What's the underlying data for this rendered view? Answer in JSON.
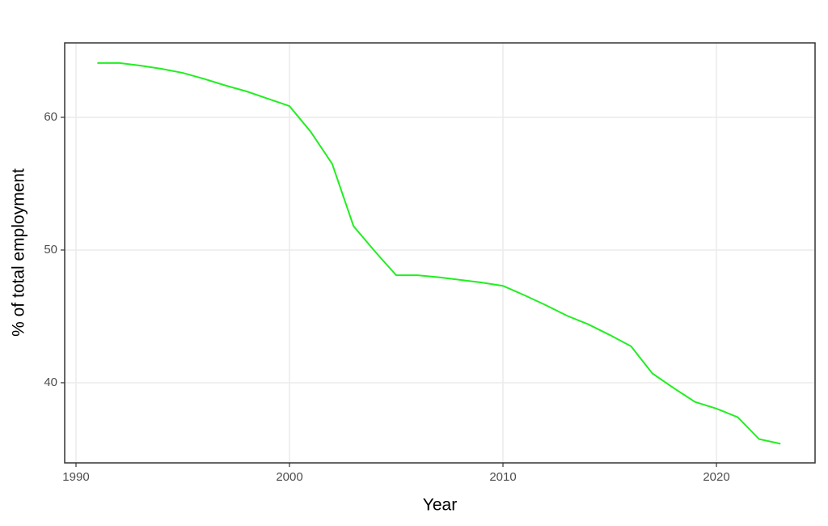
{
  "chart_data": {
    "type": "line",
    "x_label": "Year",
    "y_label": "% of total employment",
    "x": [
      1991,
      1992,
      1993,
      1994,
      1995,
      1996,
      1997,
      1998,
      1999,
      2000,
      2001,
      2002,
      2003,
      2004,
      2005,
      2006,
      2007,
      2008,
      2009,
      2010,
      2011,
      2012,
      2013,
      2014,
      2015,
      2016,
      2017,
      2018,
      2019,
      2020,
      2021,
      2022,
      2023
    ],
    "series": [
      {
        "color": "#22ee22",
        "values": [
          64.09,
          64.1,
          63.9,
          63.66,
          63.35,
          62.9,
          62.4,
          61.95,
          61.4,
          60.85,
          58.9,
          56.5,
          51.8,
          49.9,
          48.1,
          48.1,
          47.95,
          47.75,
          47.55,
          47.3,
          46.6,
          45.85,
          45.05,
          44.4,
          43.6,
          42.75,
          40.7,
          39.6,
          38.55,
          38.05,
          37.4,
          35.75,
          35.4
        ]
      }
    ],
    "xlim": [
      1989.47,
      2024.62
    ],
    "ylim": [
      33.96,
      65.61
    ],
    "xticks": [
      1990,
      2000,
      2010,
      2020
    ],
    "yticks": [
      40,
      50,
      60
    ],
    "grid": true
  }
}
